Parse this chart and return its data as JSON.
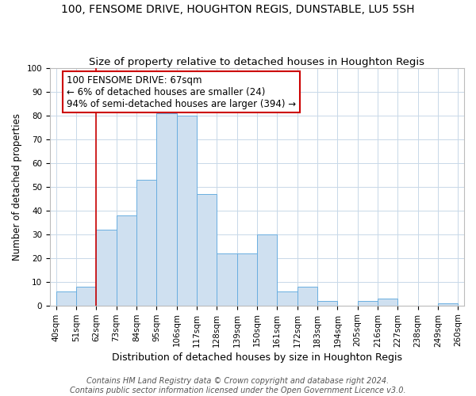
{
  "title": "100, FENSOME DRIVE, HOUGHTON REGIS, DUNSTABLE, LU5 5SH",
  "subtitle": "Size of property relative to detached houses in Houghton Regis",
  "xlabel": "Distribution of detached houses by size in Houghton Regis",
  "ylabel": "Number of detached properties",
  "bin_labels": [
    "40sqm",
    "51sqm",
    "62sqm",
    "73sqm",
    "84sqm",
    "95sqm",
    "106sqm",
    "117sqm",
    "128sqm",
    "139sqm",
    "150sqm",
    "161sqm",
    "172sqm",
    "183sqm",
    "194sqm",
    "205sqm",
    "216sqm",
    "227sqm",
    "238sqm",
    "249sqm",
    "260sqm"
  ],
  "bar_heights": [
    6,
    8,
    32,
    38,
    53,
    81,
    80,
    47,
    22,
    22,
    30,
    6,
    8,
    2,
    0,
    2,
    3,
    0,
    0,
    1,
    1
  ],
  "bar_color": "#cfe0f0",
  "bar_edge_color": "#6aaee0",
  "vline_x_idx": 2,
  "vline_color": "#cc0000",
  "annotation_text": "100 FENSOME DRIVE: 67sqm\n← 6% of detached houses are smaller (24)\n94% of semi-detached houses are larger (394) →",
  "annotation_box_color": "#ffffff",
  "annotation_box_edge": "#cc0000",
  "ylim": [
    0,
    100
  ],
  "yticks": [
    0,
    10,
    20,
    30,
    40,
    50,
    60,
    70,
    80,
    90,
    100
  ],
  "footer_line1": "Contains HM Land Registry data © Crown copyright and database right 2024.",
  "footer_line2": "Contains public sector information licensed under the Open Government Licence v3.0.",
  "bg_color": "#ffffff",
  "grid_color": "#c8d8e8",
  "title_fontsize": 10,
  "subtitle_fontsize": 9.5,
  "xlabel_fontsize": 9,
  "ylabel_fontsize": 8.5,
  "tick_fontsize": 7.5,
  "annotation_fontsize": 8.5,
  "footer_fontsize": 7
}
